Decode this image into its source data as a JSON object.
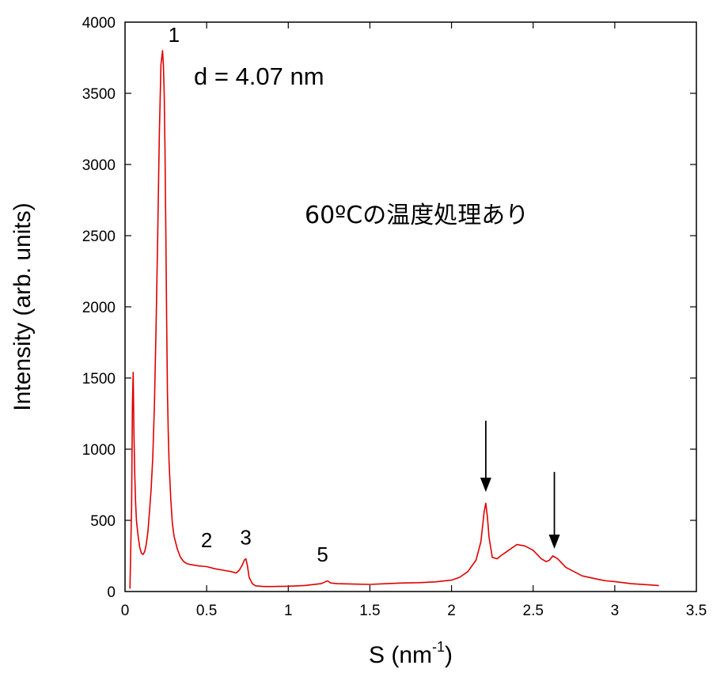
{
  "chart_data": {
    "type": "line",
    "xlabel_base": "S (nm",
    "xlabel_sup": "-1",
    "xlabel_tail": ")",
    "ylabel": "Intensity (arb. units)",
    "xlim": [
      0,
      3.5
    ],
    "ylim": [
      0,
      4000
    ],
    "x_ticks": [
      0,
      0.5,
      1,
      1.5,
      2,
      2.5,
      3,
      3.5
    ],
    "x_tick_labels": [
      "0",
      "0.5",
      "1",
      "1.5",
      "2",
      "2.5",
      "3",
      "3.5"
    ],
    "y_ticks": [
      0,
      500,
      1000,
      1500,
      2000,
      2500,
      3000,
      3500,
      4000
    ],
    "y_tick_labels": [
      "0",
      "500",
      "1000",
      "1500",
      "2000",
      "2500",
      "3000",
      "3500",
      "4000"
    ],
    "grid": false,
    "line_color": "#e00000",
    "series": [
      {
        "x": [
          0.03,
          0.04,
          0.045,
          0.05,
          0.055,
          0.06,
          0.065,
          0.07,
          0.08,
          0.09,
          0.1,
          0.11,
          0.12,
          0.13,
          0.14,
          0.15,
          0.16,
          0.17,
          0.18,
          0.19,
          0.2,
          0.21,
          0.22,
          0.23,
          0.235,
          0.24,
          0.245,
          0.25,
          0.255,
          0.26,
          0.265,
          0.27,
          0.28,
          0.29,
          0.3,
          0.32,
          0.34,
          0.36,
          0.38,
          0.4,
          0.45,
          0.5,
          0.55,
          0.6,
          0.65,
          0.68,
          0.7,
          0.72,
          0.73,
          0.74,
          0.75,
          0.76,
          0.78,
          0.8,
          0.85,
          0.9,
          1.0,
          1.1,
          1.2,
          1.22,
          1.24,
          1.26,
          1.3,
          1.4,
          1.5,
          1.6,
          1.7,
          1.8,
          1.9,
          2.0,
          2.05,
          2.1,
          2.15,
          2.18,
          2.2,
          2.21,
          2.22,
          2.23,
          2.25,
          2.28,
          2.3,
          2.35,
          2.4,
          2.45,
          2.5,
          2.55,
          2.58,
          2.6,
          2.62,
          2.65,
          2.7,
          2.8,
          2.9,
          2.95,
          3.0,
          3.1,
          3.2,
          3.27
        ],
        "y": [
          20,
          600,
          1300,
          1540,
          1100,
          800,
          620,
          500,
          390,
          310,
          270,
          260,
          280,
          330,
          420,
          560,
          720,
          950,
          1300,
          1850,
          2500,
          3200,
          3700,
          3800,
          3700,
          3500,
          3100,
          2500,
          1900,
          1400,
          1100,
          900,
          650,
          480,
          390,
          300,
          240,
          210,
          195,
          190,
          180,
          175,
          160,
          150,
          140,
          130,
          150,
          190,
          220,
          230,
          180,
          100,
          55,
          40,
          35,
          35,
          37,
          42,
          55,
          65,
          75,
          60,
          55,
          52,
          50,
          55,
          60,
          62,
          68,
          80,
          100,
          140,
          220,
          350,
          560,
          620,
          520,
          380,
          240,
          230,
          250,
          290,
          330,
          320,
          290,
          230,
          210,
          220,
          250,
          230,
          170,
          110,
          85,
          75,
          70,
          55,
          48,
          42
        ]
      }
    ],
    "peak_labels": [
      {
        "text": "1",
        "x": 0.3,
        "y": 3860
      },
      {
        "text": "2",
        "x": 0.5,
        "y": 310
      },
      {
        "text": "3",
        "x": 0.74,
        "y": 330
      },
      {
        "text": "5",
        "x": 1.21,
        "y": 210
      }
    ],
    "arrows": [
      {
        "x": 2.21,
        "from_y": 1200,
        "to_y": 700
      },
      {
        "x": 2.63,
        "from_y": 840,
        "to_y": 300
      }
    ],
    "annotations": {
      "spacing": "d = 4.07 nm",
      "treatment": "60ºCの温度処理あり"
    }
  }
}
